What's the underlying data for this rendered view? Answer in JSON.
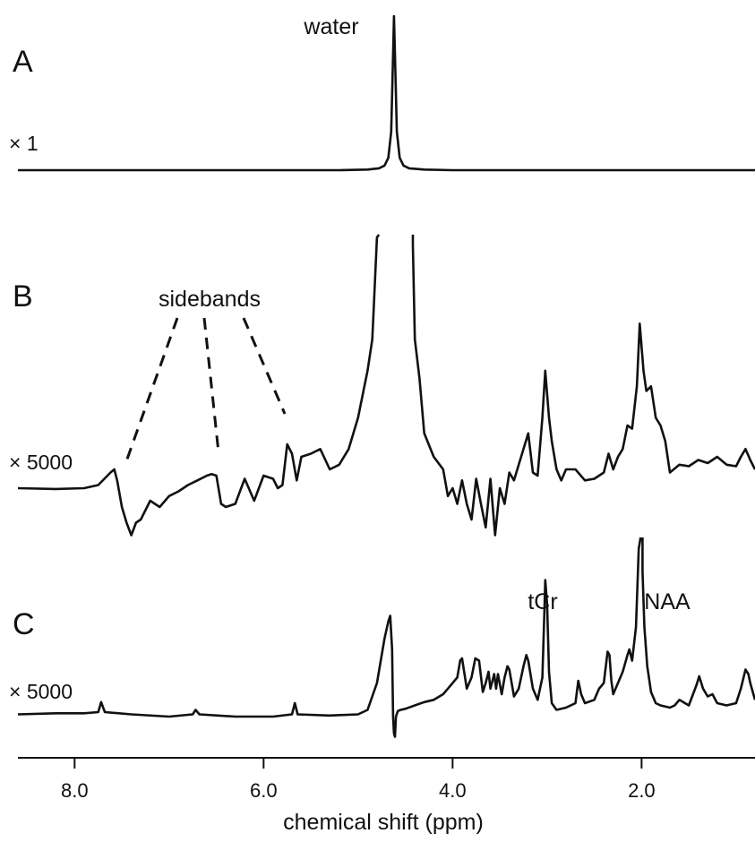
{
  "chart_data": {
    "type": "line",
    "xlabel": "chemical shift (ppm)",
    "x_reversed": true,
    "xlim": [
      8.6,
      0.8
    ],
    "x_ticks": [
      8.0,
      6.0,
      4.0,
      2.0
    ],
    "x_tick_labels": [
      "8.0",
      "6.0",
      "4.0",
      "2.0"
    ],
    "grid": false,
    "panels": [
      {
        "letter": "A",
        "scale": "× 1",
        "annotations": [
          {
            "text": "water",
            "ppm": 4.62
          }
        ],
        "series": [
          {
            "x": [
              8.6,
              5.2,
              4.9,
              4.78,
              4.72,
              4.68,
              4.65,
              4.63,
              4.62,
              4.61,
              4.59,
              4.56,
              4.52,
              4.46,
              4.3,
              4.0,
              0.8
            ],
            "y": [
              0,
              0,
              0.004,
              0.012,
              0.03,
              0.08,
              0.25,
              0.75,
              1.0,
              0.75,
              0.25,
              0.08,
              0.03,
              0.012,
              0.004,
              0,
              0
            ]
          }
        ]
      },
      {
        "letter": "B",
        "scale": "× 5000",
        "annotations": [
          {
            "text": "sidebands",
            "ppm": 6.5,
            "points_to_ppm": [
              7.4,
              6.45,
              5.75
            ]
          }
        ],
        "series": [
          {
            "x": [
              8.6,
              8.2,
              7.9,
              7.75,
              7.62,
              7.58,
              7.55,
              7.5,
              7.45,
              7.4,
              7.35,
              7.3,
              7.2,
              7.1,
              7.0,
              6.9,
              6.8,
              6.7,
              6.6,
              6.55,
              6.5,
              6.45,
              6.4,
              6.3,
              6.2,
              6.1,
              6.0,
              5.9,
              5.85,
              5.8,
              5.75,
              5.7,
              5.65,
              5.6,
              5.5,
              5.4,
              5.3,
              5.2,
              5.1,
              5.0,
              4.95,
              4.9,
              4.85,
              4.8,
              4.78,
              4.44,
              4.42,
              4.4,
              4.35,
              4.3,
              4.2,
              4.1,
              4.05,
              4.0,
              3.95,
              3.9,
              3.85,
              3.8,
              3.75,
              3.7,
              3.65,
              3.6,
              3.55,
              3.5,
              3.45,
              3.4,
              3.35,
              3.3,
              3.25,
              3.2,
              3.15,
              3.1,
              3.05,
              3.02,
              3.0,
              2.98,
              2.95,
              2.9,
              2.85,
              2.8,
              2.7,
              2.6,
              2.5,
              2.4,
              2.35,
              2.3,
              2.25,
              2.2,
              2.15,
              2.1,
              2.05,
              2.02,
              2.0,
              1.98,
              1.95,
              1.9,
              1.85,
              1.8,
              1.75,
              1.7,
              1.6,
              1.5,
              1.4,
              1.3,
              1.2,
              1.1,
              1.0,
              0.95,
              0.9,
              0.85,
              0.8
            ],
            "y": [
              0.0,
              -0.005,
              0.0,
              0.02,
              0.1,
              0.12,
              0.05,
              -0.12,
              -0.22,
              -0.3,
              -0.22,
              -0.2,
              -0.08,
              -0.12,
              -0.05,
              -0.02,
              0.02,
              0.05,
              0.08,
              0.09,
              0.08,
              -0.1,
              -0.12,
              -0.1,
              0.06,
              -0.08,
              0.08,
              0.06,
              0.0,
              0.02,
              0.28,
              0.22,
              0.05,
              0.2,
              0.22,
              0.25,
              0.12,
              0.15,
              0.25,
              0.45,
              0.6,
              0.75,
              0.95,
              1.6,
              2.2,
              2.2,
              1.55,
              0.95,
              0.7,
              0.35,
              0.2,
              0.12,
              -0.05,
              0.0,
              -0.1,
              0.05,
              -0.1,
              -0.2,
              0.06,
              -0.1,
              -0.25,
              0.06,
              -0.3,
              0.0,
              -0.1,
              0.1,
              0.05,
              0.15,
              0.25,
              0.35,
              0.1,
              0.08,
              0.45,
              0.75,
              0.6,
              0.45,
              0.3,
              0.12,
              0.05,
              0.12,
              0.12,
              0.05,
              0.06,
              0.1,
              0.22,
              0.12,
              0.2,
              0.25,
              0.4,
              0.38,
              0.65,
              1.05,
              0.9,
              0.75,
              0.62,
              0.65,
              0.45,
              0.4,
              0.3,
              0.1,
              0.15,
              0.14,
              0.18,
              0.16,
              0.2,
              0.15,
              0.14,
              0.2,
              0.25,
              0.18,
              0.12
            ]
          }
        ]
      },
      {
        "letter": "C",
        "scale": "× 5000",
        "annotations": [
          {
            "text": "tCr",
            "ppm": 3.02
          },
          {
            "text": "NAA",
            "ppm": 2.01
          }
        ],
        "series": [
          {
            "x": [
              8.6,
              8.2,
              7.9,
              7.75,
              7.72,
              7.68,
              7.4,
              7.0,
              6.75,
              6.72,
              6.68,
              6.3,
              5.9,
              5.7,
              5.67,
              5.64,
              5.3,
              5.0,
              4.9,
              4.8,
              4.72,
              4.68,
              4.66,
              4.64,
              4.63,
              4.62,
              4.61,
              4.6,
              4.58,
              4.55,
              4.5,
              4.4,
              4.3,
              4.2,
              4.1,
              4.05,
              4.0,
              3.95,
              3.92,
              3.9,
              3.85,
              3.8,
              3.76,
              3.72,
              3.68,
              3.65,
              3.62,
              3.6,
              3.56,
              3.54,
              3.52,
              3.48,
              3.45,
              3.42,
              3.4,
              3.35,
              3.3,
              3.25,
              3.22,
              3.2,
              3.15,
              3.1,
              3.05,
              3.03,
              3.02,
              3.0,
              2.98,
              2.95,
              2.9,
              2.8,
              2.7,
              2.67,
              2.64,
              2.6,
              2.5,
              2.45,
              2.4,
              2.36,
              2.34,
              2.32,
              2.3,
              2.25,
              2.2,
              2.15,
              2.13,
              2.1,
              2.06,
              2.03,
              2.01,
              1.99,
              1.97,
              1.94,
              1.9,
              1.85,
              1.8,
              1.7,
              1.65,
              1.6,
              1.5,
              1.42,
              1.39,
              1.35,
              1.3,
              1.25,
              1.2,
              1.1,
              1.0,
              0.95,
              0.9,
              0.87,
              0.85,
              0.8
            ],
            "y": [
              0.02,
              0.03,
              0.03,
              0.04,
              0.13,
              0.04,
              0.02,
              0.0,
              0.02,
              0.06,
              0.02,
              0.0,
              0.0,
              0.02,
              0.12,
              0.02,
              0.01,
              0.02,
              0.06,
              0.3,
              0.7,
              0.85,
              0.9,
              0.6,
              0.0,
              -0.15,
              -0.18,
              0.0,
              0.05,
              0.06,
              0.07,
              0.1,
              0.13,
              0.15,
              0.2,
              0.25,
              0.3,
              0.35,
              0.5,
              0.52,
              0.25,
              0.35,
              0.52,
              0.5,
              0.22,
              0.3,
              0.4,
              0.25,
              0.38,
              0.25,
              0.38,
              0.2,
              0.35,
              0.45,
              0.42,
              0.18,
              0.25,
              0.45,
              0.55,
              0.5,
              0.25,
              0.15,
              0.35,
              0.9,
              1.22,
              1.0,
              0.4,
              0.12,
              0.06,
              0.08,
              0.12,
              0.32,
              0.2,
              0.12,
              0.15,
              0.25,
              0.3,
              0.58,
              0.55,
              0.32,
              0.2,
              0.3,
              0.4,
              0.55,
              0.6,
              0.5,
              0.8,
              1.5,
              1.62,
              1.3,
              0.8,
              0.45,
              0.22,
              0.12,
              0.1,
              0.08,
              0.1,
              0.15,
              0.1,
              0.28,
              0.36,
              0.25,
              0.18,
              0.2,
              0.12,
              0.1,
              0.12,
              0.25,
              0.42,
              0.38,
              0.3,
              0.15
            ]
          }
        ]
      }
    ]
  }
}
